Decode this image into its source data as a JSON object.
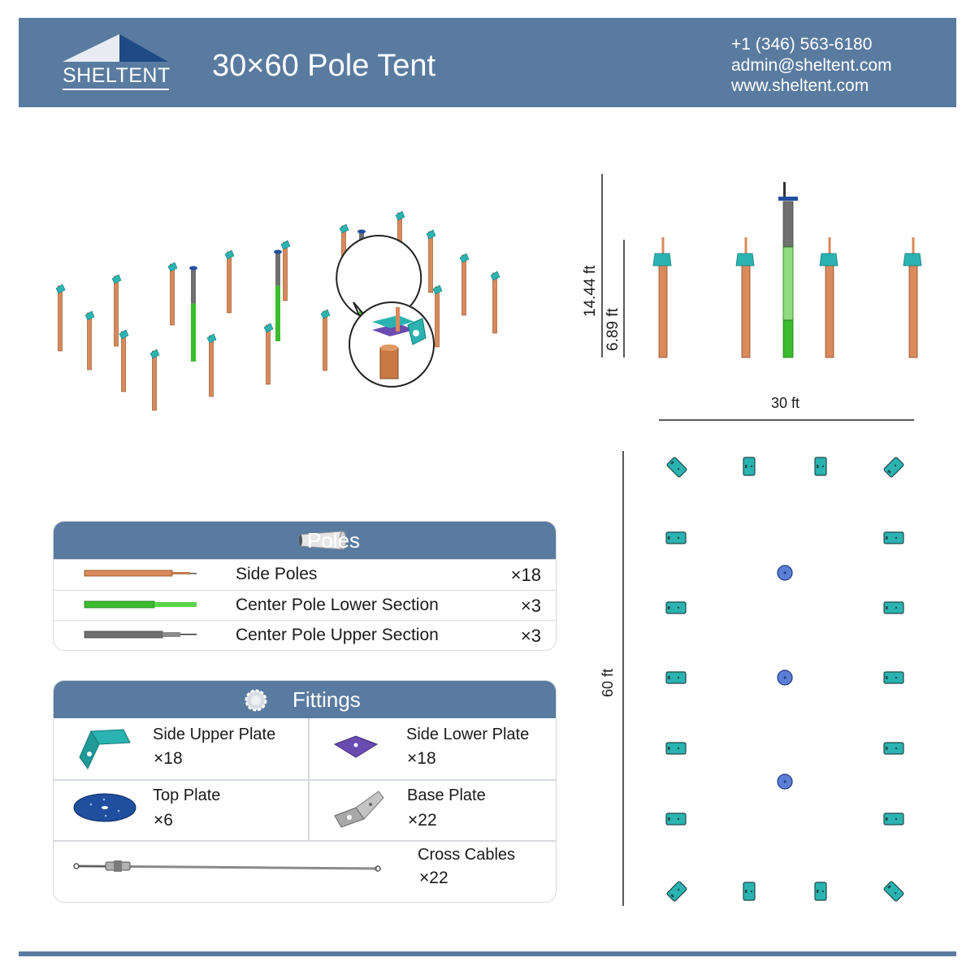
{
  "brand": {
    "name": "SHELTENT"
  },
  "title": "30×60 Pole Tent",
  "contact": {
    "phone": "+1 (346) 563-6180",
    "email": "admin@sheltent.com",
    "website": "www.sheltent.com"
  },
  "elevation": {
    "center_height": "14.44 ft",
    "side_height": "6.89 ft",
    "width": "30 ft"
  },
  "plan": {
    "length": "60 ft"
  },
  "poles": {
    "title": "Poles",
    "items": [
      {
        "name": "Side Poles",
        "qty": "×18",
        "color": "#d9895a"
      },
      {
        "name": "Center Pole Lower Section",
        "qty": "×3",
        "color": "#3bbb2e"
      },
      {
        "name": "Center Pole Upper Section",
        "qty": "×3",
        "color": "#707070"
      }
    ]
  },
  "fittings": {
    "title": "Fittings",
    "items": [
      {
        "name": "Side Upper Plate",
        "qty": "×18",
        "color": "#2bb3b1"
      },
      {
        "name": "Side Lower Plate",
        "qty": "×18",
        "color": "#6a4bb0"
      },
      {
        "name": "Top Plate",
        "qty": "×6",
        "color": "#1f4f9e"
      },
      {
        "name": "Base Plate",
        "qty": "×22",
        "color": "#b5b5b5"
      },
      {
        "name": "Cross Cables",
        "qty": "×22",
        "color": "#9a9a9a"
      }
    ]
  },
  "colors": {
    "brand": "#5a7ba0",
    "side_pole": "#d9895a",
    "center_lower": "#3bbb2e",
    "center_upper": "#707070",
    "plate": "#2bb3b1"
  }
}
